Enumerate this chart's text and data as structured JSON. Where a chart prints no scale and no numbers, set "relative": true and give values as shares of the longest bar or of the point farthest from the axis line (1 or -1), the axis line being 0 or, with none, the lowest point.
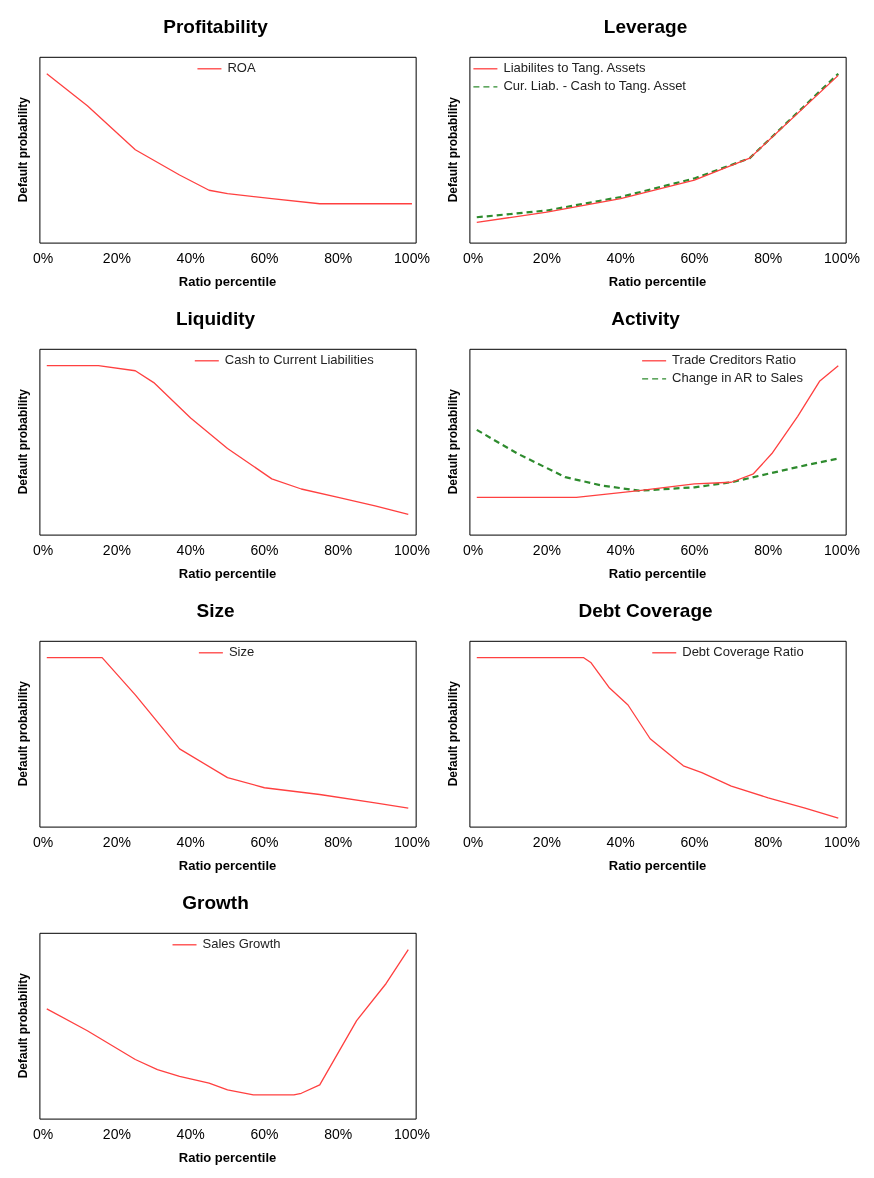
{
  "chart_data": [
    {
      "type": "line",
      "title": "Profitability",
      "xlabel": "Ratio percentile",
      "ylabel": "Default probability",
      "relative": true,
      "xlim": [
        -1,
        101
      ],
      "xticks": [
        {
          "value": 0,
          "label": "0%"
        },
        {
          "value": 20,
          "label": "20%"
        },
        {
          "value": 40,
          "label": "40%"
        },
        {
          "value": 60,
          "label": "60%"
        },
        {
          "value": 80,
          "label": "80%"
        },
        {
          "value": 100,
          "label": "100%"
        }
      ],
      "tick_labels": "x",
      "grid": false,
      "legend": "top",
      "marker": "none",
      "series": [
        {
          "name": "ROA",
          "color": "#ff4040",
          "line_style": "solid",
          "x": [
            1,
            12,
            25,
            37,
            45,
            50,
            62,
            75,
            100
          ],
          "values": [
            1,
            0.81,
            0.55,
            0.4,
            0.31,
            0.29,
            0.26,
            0.23,
            0.23
          ]
        }
      ]
    },
    {
      "type": "line",
      "title": "Leverage",
      "xlabel": "Ratio percentile",
      "ylabel": "Default probability",
      "relative": true,
      "xlim": [
        -1,
        101
      ],
      "xticks": [
        {
          "value": 0,
          "label": "0%"
        },
        {
          "value": 20,
          "label": "20%"
        },
        {
          "value": 40,
          "label": "40%"
        },
        {
          "value": 60,
          "label": "60%"
        },
        {
          "value": 80,
          "label": "80%"
        },
        {
          "value": 100,
          "label": "100%"
        }
      ],
      "tick_labels": "x",
      "grid": false,
      "legend": "top left",
      "marker": "none",
      "series": [
        {
          "name": "Liabilites to Tang. Assets",
          "color": "#ff4040",
          "line_style": "solid",
          "x": [
            1,
            20,
            40,
            60,
            75,
            99
          ],
          "values": [
            0.12,
            0.18,
            0.26,
            0.37,
            0.5,
            0.99
          ]
        },
        {
          "name": "Cur. Liab. - Cash to Tang. Asset",
          "color": "#2e8b2e",
          "line_style": "dashed",
          "x": [
            1,
            20,
            40,
            60,
            75,
            99
          ],
          "values": [
            0.15,
            0.19,
            0.27,
            0.38,
            0.5,
            1
          ]
        }
      ]
    },
    {
      "type": "line",
      "title": "Liquidity",
      "xlabel": "Ratio percentile",
      "ylabel": "Default probability",
      "relative": true,
      "xlim": [
        -1,
        101
      ],
      "xticks": [
        {
          "value": 0,
          "label": "0%"
        },
        {
          "value": 20,
          "label": "20%"
        },
        {
          "value": 40,
          "label": "40%"
        },
        {
          "value": 60,
          "label": "60%"
        },
        {
          "value": 80,
          "label": "80%"
        },
        {
          "value": 100,
          "label": "100%"
        }
      ],
      "tick_labels": "x",
      "grid": false,
      "legend": "top right",
      "marker": "none",
      "series": [
        {
          "name": "Cash to Current Liabilities",
          "color": "#ff4040",
          "line_style": "solid",
          "x": [
            1,
            15,
            25,
            30,
            40,
            50,
            62,
            70,
            80,
            90,
            99
          ],
          "values": [
            1,
            1,
            0.97,
            0.9,
            0.69,
            0.51,
            0.33,
            0.27,
            0.22,
            0.17,
            0.12
          ]
        }
      ]
    },
    {
      "type": "line",
      "title": "Activity",
      "xlabel": "Ratio percentile",
      "ylabel": "Default probability",
      "relative": true,
      "xlim": [
        -1,
        101
      ],
      "xticks": [
        {
          "value": 0,
          "label": "0%"
        },
        {
          "value": 20,
          "label": "20%"
        },
        {
          "value": 40,
          "label": "40%"
        },
        {
          "value": 60,
          "label": "60%"
        },
        {
          "value": 80,
          "label": "80%"
        },
        {
          "value": 100,
          "label": "100%"
        }
      ],
      "tick_labels": "x",
      "grid": false,
      "legend": "top right",
      "marker": "none",
      "series": [
        {
          "name": "Trade Creditors Ratio",
          "color": "#ff4040",
          "line_style": "solid",
          "x": [
            1,
            28,
            45,
            60,
            70,
            76,
            81,
            88,
            94,
            99
          ],
          "values": [
            0.22,
            0.22,
            0.26,
            0.3,
            0.31,
            0.36,
            0.48,
            0.7,
            0.91,
            1
          ]
        },
        {
          "name": "Change in AR to Sales",
          "color": "#2e8b2e",
          "line_style": "dashed",
          "x": [
            1,
            12,
            25,
            35,
            45,
            60,
            70,
            80,
            90,
            99
          ],
          "values": [
            0.62,
            0.48,
            0.34,
            0.29,
            0.26,
            0.28,
            0.31,
            0.36,
            0.41,
            0.45
          ]
        }
      ]
    },
    {
      "type": "line",
      "title": "Size",
      "xlabel": "Ratio percentile",
      "ylabel": "Default probability",
      "relative": true,
      "xlim": [
        -1,
        101
      ],
      "xticks": [
        {
          "value": 0,
          "label": "0%"
        },
        {
          "value": 20,
          "label": "20%"
        },
        {
          "value": 40,
          "label": "40%"
        },
        {
          "value": 60,
          "label": "60%"
        },
        {
          "value": 80,
          "label": "80%"
        },
        {
          "value": 100,
          "label": "100%"
        }
      ],
      "tick_labels": "x",
      "grid": false,
      "legend": "top",
      "marker": "none",
      "series": [
        {
          "name": "Size",
          "color": "#ff4040",
          "line_style": "solid",
          "x": [
            1,
            16,
            25,
            37,
            50,
            60,
            75,
            90,
            99
          ],
          "values": [
            1,
            1,
            0.78,
            0.46,
            0.29,
            0.23,
            0.19,
            0.14,
            0.11
          ]
        }
      ]
    },
    {
      "type": "line",
      "title": "Debt Coverage",
      "xlabel": "Ratio percentile",
      "ylabel": "Default probability",
      "relative": true,
      "xlim": [
        -1,
        101
      ],
      "xticks": [
        {
          "value": 0,
          "label": "0%"
        },
        {
          "value": 20,
          "label": "20%"
        },
        {
          "value": 40,
          "label": "40%"
        },
        {
          "value": 60,
          "label": "60%"
        },
        {
          "value": 80,
          "label": "80%"
        },
        {
          "value": 100,
          "label": "100%"
        }
      ],
      "tick_labels": "x",
      "grid": false,
      "legend": "top right",
      "marker": "none",
      "series": [
        {
          "name": "Debt Coverage Ratio",
          "color": "#ff4040",
          "line_style": "solid",
          "x": [
            1,
            30,
            32,
            37,
            42,
            48,
            57,
            62,
            70,
            80,
            90,
            99
          ],
          "values": [
            1,
            1,
            0.97,
            0.82,
            0.72,
            0.52,
            0.36,
            0.32,
            0.24,
            0.17,
            0.11,
            0.05
          ]
        }
      ]
    },
    {
      "type": "line",
      "title": "Growth",
      "xlabel": "Ratio percentile",
      "ylabel": "Default probability",
      "relative": true,
      "xlim": [
        -1,
        101
      ],
      "xticks": [
        {
          "value": 0,
          "label": "0%"
        },
        {
          "value": 20,
          "label": "20%"
        },
        {
          "value": 40,
          "label": "40%"
        },
        {
          "value": 60,
          "label": "60%"
        },
        {
          "value": 80,
          "label": "80%"
        },
        {
          "value": 100,
          "label": "100%"
        }
      ],
      "tick_labels": "x",
      "grid": false,
      "legend": "top",
      "marker": "none",
      "series": [
        {
          "name": "Sales Growth",
          "color": "#ff4040",
          "line_style": "solid",
          "x": [
            1,
            12,
            25,
            31,
            37,
            45,
            50,
            57,
            68,
            70,
            75,
            85,
            93,
            99
          ],
          "values": [
            0.65,
            0.52,
            0.35,
            0.29,
            0.25,
            0.21,
            0.17,
            0.14,
            0.14,
            0.15,
            0.2,
            0.58,
            0.8,
            1
          ]
        }
      ]
    }
  ]
}
